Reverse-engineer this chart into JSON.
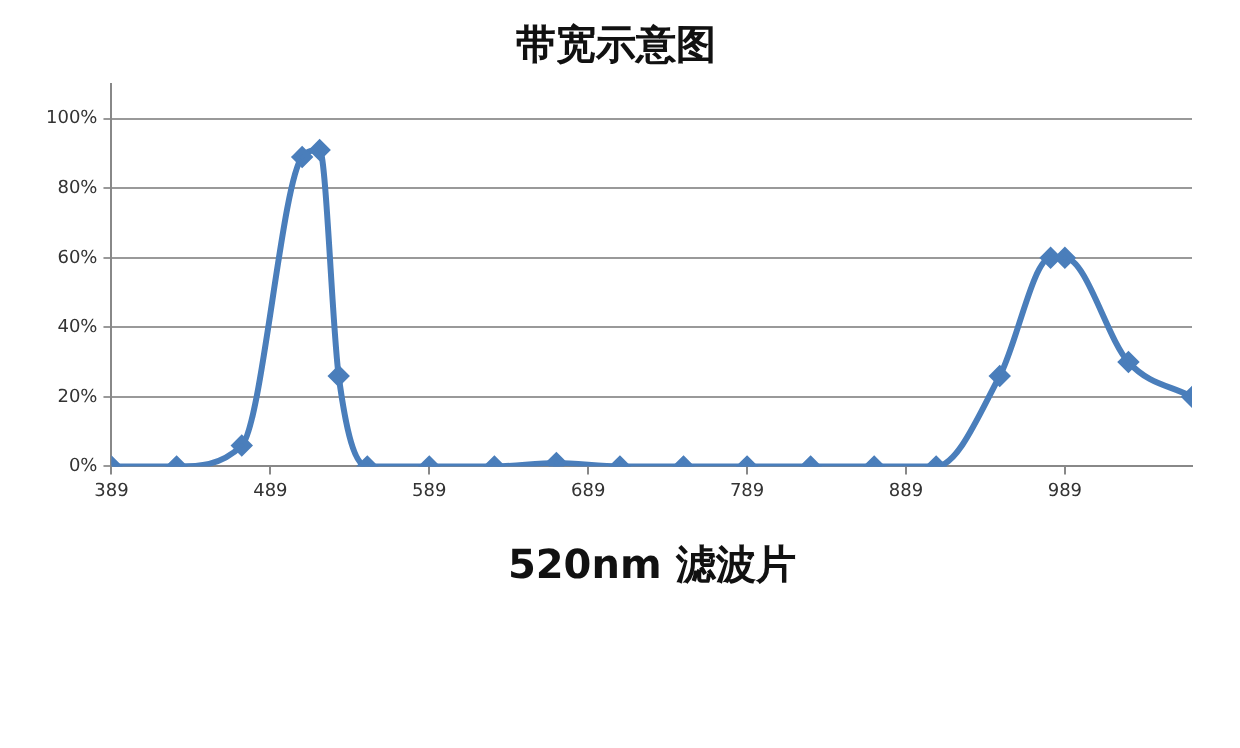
{
  "chart_data": {
    "type": "line",
    "title": "带宽示意图",
    "xlabel": "520nm 滤波片",
    "x": [
      389,
      430,
      471,
      509,
      520,
      532,
      550,
      589,
      630,
      669,
      709,
      749,
      789,
      829,
      869,
      908,
      948,
      980,
      989,
      1029,
      1069
    ],
    "series": [
      {
        "color": "#4a7ebb",
        "values": [
          0,
          0,
          6,
          89,
          91,
          26,
          0,
          0,
          0,
          1,
          0,
          0,
          0,
          0,
          0,
          0,
          26,
          60,
          60,
          30,
          20
        ]
      }
    ],
    "xlim": [
      389,
      1069
    ],
    "xticks": [
      389,
      489,
      589,
      689,
      789,
      889,
      989
    ],
    "ylim": [
      0,
      110
    ],
    "yticks": [
      {
        "value": 0,
        "label": "0%"
      },
      {
        "value": 20,
        "label": "20%"
      },
      {
        "value": 40,
        "label": "40%"
      },
      {
        "value": 60,
        "label": "60%"
      },
      {
        "value": 80,
        "label": "80%"
      },
      {
        "value": 100,
        "label": "100%"
      }
    ],
    "grid": "y",
    "marker": "diamond",
    "line_style": "solid"
  }
}
